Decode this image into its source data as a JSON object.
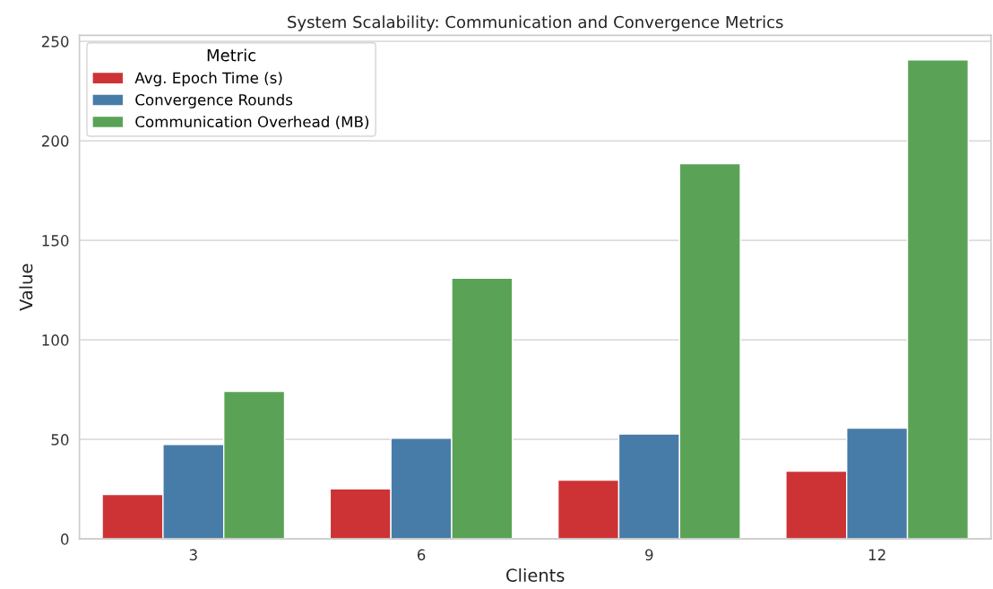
{
  "chart_data": {
    "type": "bar",
    "title": "System Scalability: Communication and Convergence Metrics",
    "xlabel": "Clients",
    "ylabel": "Value",
    "legend_title": "Metric",
    "categories": [
      "3",
      "6",
      "9",
      "12"
    ],
    "series": [
      {
        "name": "Avg. Epoch Time (s)",
        "color": "#cd3334",
        "values": [
          22.3,
          25.2,
          29.6,
          34.0
        ]
      },
      {
        "name": "Convergence Rounds",
        "color": "#477ca8",
        "values": [
          47.5,
          50.6,
          52.7,
          55.7
        ]
      },
      {
        "name": "Communication Overhead (MB)",
        "color": "#5aa356",
        "values": [
          74.1,
          131,
          188.5,
          240.7
        ]
      }
    ],
    "ylim": [
      0,
      253
    ],
    "yticks": [
      0,
      50,
      100,
      150,
      200,
      250
    ],
    "grid": "y",
    "legend": "top left"
  }
}
